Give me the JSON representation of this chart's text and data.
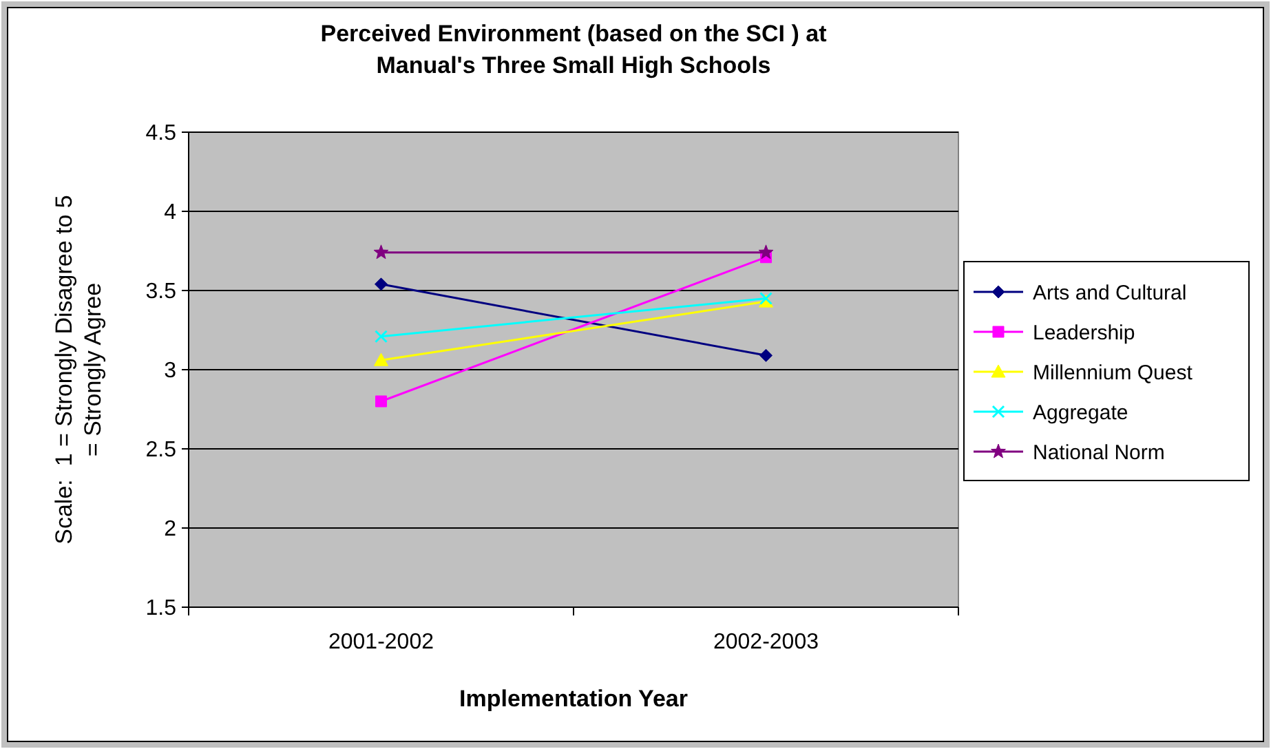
{
  "chart_data": {
    "type": "line",
    "title": "Perceived Environment (based on the SCI ) at Manual's Three Small High Schools",
    "xlabel": "Implementation Year",
    "ylabel": "Scale:  1 = Strongly Disagree to 5 = Strongly Agree",
    "categories": [
      "2001-2002",
      "2002-2003"
    ],
    "series": [
      {
        "name": "Arts and Cultural",
        "color": "#000080",
        "marker": "diamond",
        "values": [
          3.54,
          3.09
        ]
      },
      {
        "name": "Leadership",
        "color": "#ff00ff",
        "marker": "square",
        "values": [
          2.8,
          3.71
        ]
      },
      {
        "name": "Millennium Quest",
        "color": "#ffff00",
        "marker": "triangle",
        "values": [
          3.06,
          3.43
        ]
      },
      {
        "name": "Aggregate",
        "color": "#00ffff",
        "marker": "cross",
        "values": [
          3.21,
          3.45
        ]
      },
      {
        "name": "National Norm",
        "color": "#800080",
        "marker": "star",
        "values": [
          3.74,
          3.74
        ]
      }
    ],
    "ylim": [
      1.5,
      4.5
    ],
    "yticks": [
      {
        "value": 1.5,
        "label": "1.5"
      },
      2,
      {
        "value": 2.5,
        "label": "2.5"
      },
      3,
      {
        "value": 3.5,
        "label": "3.5"
      },
      4,
      {
        "value": 4.5,
        "label": "4.5"
      }
    ],
    "grid": "y",
    "legend": "right"
  }
}
